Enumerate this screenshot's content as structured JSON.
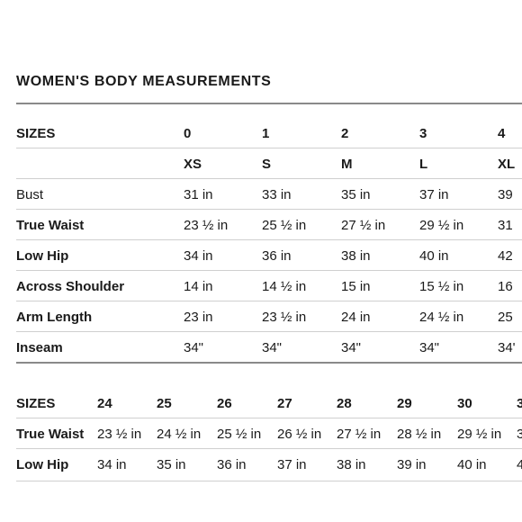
{
  "title": "WOMEN'S BODY MEASUREMENTS",
  "table1": {
    "header_label": "SIZES",
    "sizes": [
      "0",
      "1",
      "2",
      "3",
      "4"
    ],
    "letters": [
      "XS",
      "S",
      "M",
      "L",
      "XL"
    ],
    "rows": [
      {
        "label": "Bust",
        "values": [
          "31 in",
          "33 in",
          "35 in",
          "37 in",
          "39"
        ]
      },
      {
        "label": "True Waist",
        "values": [
          "23 ½ in",
          "25 ½ in",
          "27 ½ in",
          "29 ½ in",
          "31"
        ]
      },
      {
        "label": "Low Hip",
        "values": [
          "34 in",
          "36 in",
          "38 in",
          "40 in",
          "42"
        ]
      },
      {
        "label": "Across Shoulder",
        "values": [
          "14 in",
          "14 ½ in",
          "15 in",
          "15 ½ in",
          "16"
        ]
      },
      {
        "label": "Arm Length",
        "values": [
          "23 in",
          "23 ½ in",
          "24 in",
          "24 ½ in",
          "25"
        ]
      },
      {
        "label": "Inseam",
        "values": [
          "34\"",
          "34\"",
          "34\"",
          "34\"",
          "34'"
        ]
      }
    ]
  },
  "table2": {
    "header_label": "SIZES",
    "sizes": [
      "24",
      "25",
      "26",
      "27",
      "28",
      "29",
      "30",
      "3"
    ],
    "rows": [
      {
        "label": "True Waist",
        "values": [
          "23 ½ in",
          "24 ½ in",
          "25 ½ in",
          "26 ½ in",
          "27 ½ in",
          "28 ½ in",
          "29 ½ in",
          "3"
        ]
      },
      {
        "label": "Low Hip",
        "values": [
          "34 in",
          "35 in",
          "36 in",
          "37 in",
          "38 in",
          "39 in",
          "40 in",
          "4"
        ]
      }
    ]
  }
}
